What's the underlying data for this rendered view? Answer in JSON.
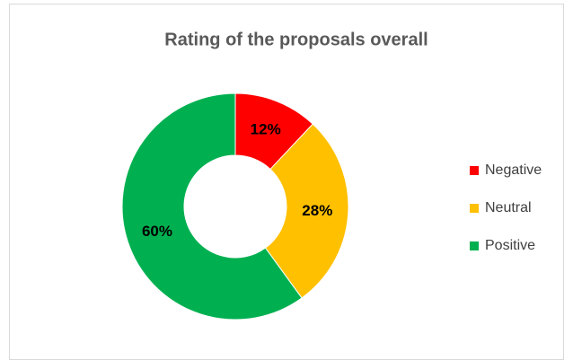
{
  "chart_data": {
    "type": "donut",
    "title": "Rating of the proposals overall",
    "categories": [
      "Negative",
      "Neutral",
      "Positive"
    ],
    "values": [
      12,
      28,
      60
    ],
    "value_labels": [
      "12%",
      "28%",
      "60%"
    ],
    "colors": [
      "#ff0000",
      "#ffc000",
      "#00b050"
    ],
    "legend": "right"
  }
}
